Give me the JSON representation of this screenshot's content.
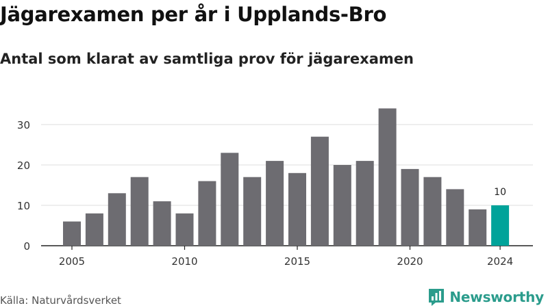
{
  "header": {
    "title": "Jägarexamen per år i Upplands-Bro",
    "subtitle": "Antal som klarat av samtliga prov för jägarexamen"
  },
  "footer": {
    "source": "Källa: Naturvårdsverket",
    "brand": "Newsworthy"
  },
  "colors": {
    "bar": "#6d6c71",
    "highlight": "#00a39a",
    "grid": "#dddddd",
    "baseline": "#222222",
    "brand": "#2b9c8c"
  },
  "icons": {
    "brand_logo": "bar-chart-speech-bubble-icon"
  },
  "chart_data": {
    "type": "bar",
    "title": "Jägarexamen per år i Upplands-Bro",
    "subtitle": "Antal som klarat av samtliga prov för jägarexamen",
    "xlabel": "",
    "ylabel": "",
    "categories": [
      2005,
      2006,
      2007,
      2008,
      2009,
      2010,
      2011,
      2012,
      2013,
      2014,
      2015,
      2016,
      2017,
      2018,
      2019,
      2020,
      2021,
      2022,
      2023,
      2024
    ],
    "values": [
      6,
      8,
      13,
      17,
      11,
      8,
      16,
      23,
      17,
      21,
      18,
      27,
      20,
      21,
      34,
      19,
      17,
      14,
      9,
      10
    ],
    "highlight": {
      "category": 2024,
      "label": "10"
    },
    "x_ticks": [
      2005,
      2010,
      2015,
      2020,
      2024
    ],
    "y_ticks": [
      0,
      10,
      20,
      30
    ],
    "ylim": [
      0,
      36
    ],
    "grid": true,
    "legend": "none"
  }
}
